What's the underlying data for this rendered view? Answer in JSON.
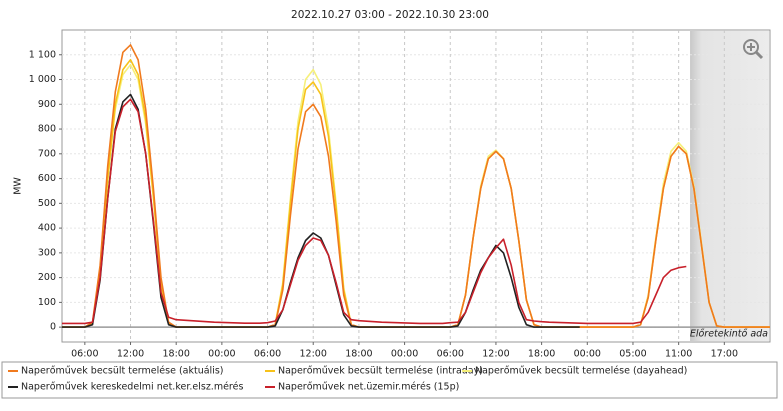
{
  "chart_data": {
    "type": "line",
    "title": "2022.10.27 03:00 - 2022.10.30 23:00",
    "y_label": "MW",
    "annotation": {
      "x": [
        82.5,
        93
      ],
      "label": "Előretekintő ada"
    },
    "x": [
      0,
      1,
      2,
      3,
      4,
      5,
      6,
      7,
      8,
      9,
      10,
      11,
      12,
      13,
      14,
      15,
      16,
      17,
      18,
      19,
      20,
      21,
      22,
      23,
      24,
      25,
      26,
      27,
      28,
      29,
      30,
      31,
      32,
      33,
      34,
      35,
      36,
      37,
      38,
      39,
      40,
      41,
      42,
      43,
      44,
      45,
      46,
      47,
      48,
      49,
      50,
      51,
      52,
      53,
      54,
      55,
      56,
      57,
      58,
      59,
      60,
      61,
      62,
      63,
      64,
      65,
      66,
      67,
      68,
      69,
      70,
      71,
      72,
      73,
      74,
      75,
      76,
      77,
      78,
      79,
      80,
      81,
      82,
      83,
      84,
      85,
      86,
      87,
      88,
      89,
      90,
      91,
      92,
      93
    ],
    "xlim": [
      0,
      93
    ],
    "xticks": [
      {
        "value": 3,
        "label": "06:00"
      },
      {
        "value": 9,
        "label": "12:00"
      },
      {
        "value": 15,
        "label": "18:00"
      },
      {
        "value": 21,
        "label": "00:00"
      },
      {
        "value": 27,
        "label": "06:00"
      },
      {
        "value": 33,
        "label": "12:00"
      },
      {
        "value": 39,
        "label": "18:00"
      },
      {
        "value": 45,
        "label": "00:00"
      },
      {
        "value": 51,
        "label": "06:00"
      },
      {
        "value": 57,
        "label": "12:00"
      },
      {
        "value": 63,
        "label": "18:00"
      },
      {
        "value": 69,
        "label": "00:00"
      },
      {
        "value": 75,
        "label": "05:00"
      },
      {
        "value": 81,
        "label": "11:00"
      },
      {
        "value": 87,
        "label": "17:00"
      }
    ],
    "ylim": [
      -60,
      1200
    ],
    "yticks": [
      0,
      100,
      200,
      300,
      400,
      500,
      600,
      700,
      800,
      900,
      {
        "value": 1000,
        "label": "1 000"
      },
      {
        "value": 1100,
        "label": "1 100"
      }
    ],
    "grid": true,
    "series": [
      {
        "name": "Naperőművek becsült termelése (aktuális)",
        "color": "#f07a1e",
        "values": [
          0,
          0,
          0,
          0,
          20,
          250,
          650,
          950,
          1110,
          1140,
          1080,
          880,
          560,
          200,
          20,
          0,
          0,
          0,
          0,
          0,
          0,
          0,
          0,
          0,
          0,
          0,
          0,
          0,
          10,
          150,
          450,
          720,
          870,
          900,
          850,
          690,
          430,
          130,
          10,
          0,
          0,
          0,
          0,
          0,
          0,
          0,
          0,
          0,
          0,
          0,
          0,
          0,
          10,
          130,
          360,
          560,
          680,
          710,
          680,
          560,
          350,
          110,
          10,
          0,
          0,
          0,
          0,
          0,
          0,
          0,
          0,
          0,
          0,
          0,
          0,
          0,
          10,
          120,
          350,
          560,
          690,
          730,
          700,
          560,
          330,
          100,
          5,
          0,
          0,
          0,
          0,
          0,
          0,
          0
        ]
      },
      {
        "name": "Naperőművek becsült termelése (intraday)",
        "color": "#f7c21a",
        "values": [
          0,
          0,
          0,
          0,
          15,
          230,
          600,
          900,
          1040,
          1080,
          1020,
          840,
          530,
          180,
          15,
          0,
          0,
          0,
          0,
          0,
          0,
          0,
          0,
          0,
          0,
          0,
          0,
          0,
          10,
          170,
          500,
          800,
          960,
          990,
          940,
          770,
          480,
          150,
          10,
          0,
          0,
          0,
          0,
          0,
          0,
          0,
          0,
          0,
          0,
          0,
          0,
          0,
          10,
          130,
          360,
          560,
          680,
          710,
          680,
          560,
          350,
          110,
          10,
          0,
          0,
          0,
          0,
          0,
          0,
          0,
          0,
          0,
          0,
          0,
          0,
          0,
          10,
          120,
          350,
          560,
          690,
          730,
          700,
          560,
          330,
          100,
          5,
          0,
          0,
          0,
          0,
          0,
          0,
          0
        ]
      },
      {
        "name": "Naperőművek becsült termelése (dayahead)",
        "color": "#f6f07a",
        "values": [
          0,
          0,
          0,
          0,
          15,
          220,
          590,
          880,
          1020,
          1060,
          1000,
          820,
          520,
          170,
          15,
          0,
          0,
          0,
          0,
          0,
          0,
          0,
          0,
          0,
          0,
          0,
          0,
          0,
          10,
          180,
          520,
          830,
          1000,
          1040,
          980,
          800,
          500,
          160,
          10,
          0,
          0,
          0,
          0,
          0,
          0,
          0,
          0,
          0,
          0,
          0,
          0,
          0,
          10,
          130,
          360,
          570,
          690,
          715,
          680,
          560,
          350,
          110,
          10,
          0,
          0,
          0,
          0,
          0,
          0,
          0,
          0,
          0,
          0,
          0,
          0,
          0,
          10,
          130,
          360,
          580,
          710,
          745,
          710,
          570,
          340,
          100,
          5,
          0,
          0,
          0,
          0,
          0,
          0,
          0
        ]
      },
      {
        "name": "Naperőművek kereskedelmi net.ker.elsz.mérés",
        "color": "#222222",
        "values": [
          0,
          0,
          0,
          0,
          10,
          190,
          520,
          800,
          910,
          940,
          880,
          700,
          420,
          120,
          10,
          0,
          0,
          0,
          0,
          0,
          0,
          0,
          0,
          0,
          0,
          0,
          0,
          0,
          5,
          70,
          180,
          280,
          350,
          380,
          360,
          290,
          170,
          50,
          5,
          0,
          0,
          0,
          0,
          0,
          0,
          0,
          0,
          0,
          0,
          0,
          0,
          0,
          5,
          60,
          150,
          230,
          280,
          330,
          300,
          200,
          80,
          10,
          0,
          0,
          0,
          0,
          0,
          0,
          0,
          null,
          null,
          null,
          null,
          null,
          null,
          null,
          null,
          null,
          null,
          null,
          null,
          null,
          null,
          null,
          null,
          null,
          null,
          null,
          null,
          null,
          null,
          null,
          null,
          null
        ]
      },
      {
        "name": "Naperőművek net.üzemir.mérés (15p)",
        "color": "#c8202a",
        "values": [
          15,
          15,
          15,
          15,
          20,
          200,
          520,
          790,
          890,
          920,
          870,
          700,
          430,
          140,
          40,
          30,
          28,
          26,
          24,
          22,
          20,
          19,
          18,
          17,
          16,
          16,
          16,
          18,
          25,
          70,
          170,
          270,
          330,
          360,
          350,
          290,
          180,
          60,
          30,
          26,
          24,
          22,
          20,
          19,
          18,
          17,
          16,
          15,
          15,
          15,
          15,
          18,
          20,
          60,
          140,
          220,
          280,
          320,
          355,
          250,
          100,
          30,
          25,
          22,
          20,
          19,
          18,
          17,
          16,
          15,
          15,
          15,
          15,
          15,
          15,
          15,
          20,
          60,
          130,
          200,
          230,
          240,
          245,
          null,
          null,
          null,
          null,
          null,
          null,
          null,
          null,
          null,
          null,
          null
        ]
      }
    ]
  }
}
